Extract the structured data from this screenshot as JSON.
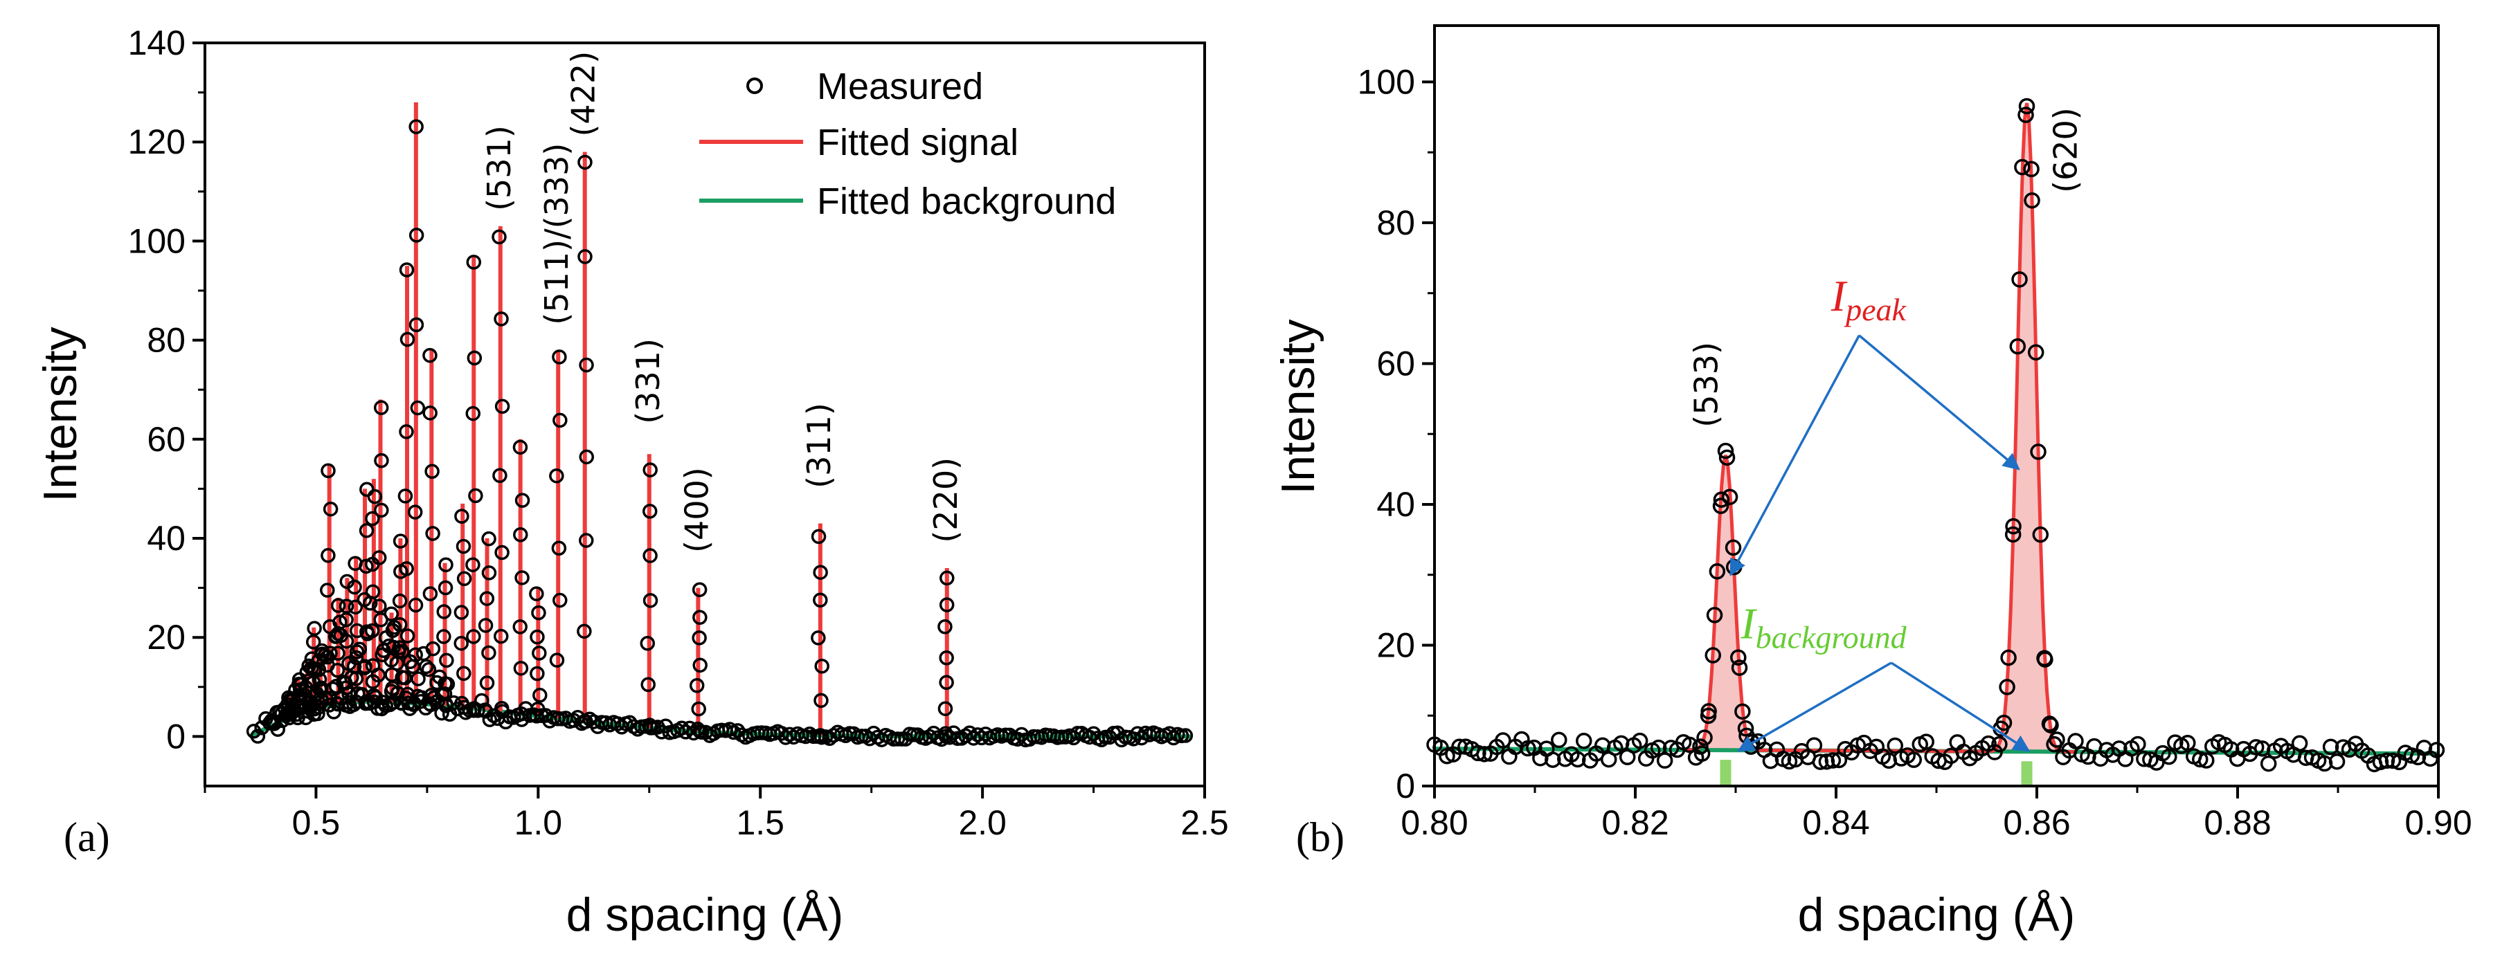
{
  "chart_data": [
    {
      "type": "scatter",
      "panel_label": "(a)",
      "xlabel": "d spacing (Å)",
      "ylabel": "Intensity",
      "xlim": [
        0.25,
        2.5
      ],
      "ylim": [
        -10,
        140
      ],
      "xticks": [
        0.5,
        1.0,
        1.5,
        2.0,
        2.5
      ],
      "xtick_labels": [
        "0.5",
        "1.0",
        "1.5",
        "2.0",
        "2.5"
      ],
      "yticks": [
        0,
        20,
        40,
        60,
        80,
        100,
        120,
        140
      ],
      "ytick_labels": [
        "0",
        "20",
        "40",
        "60",
        "80",
        "100",
        "120",
        "140"
      ],
      "legend": {
        "position": "top-right",
        "entries": [
          {
            "label": "Measured",
            "style": "open-circle",
            "color": "#000000"
          },
          {
            "label": "Fitted signal",
            "style": "line",
            "color": "#ee3b3b"
          },
          {
            "label": "Fitted background",
            "style": "line",
            "color": "#1a9e63"
          }
        ]
      },
      "background": {
        "start": 0.35,
        "end": 2.47,
        "peak_d": 0.6,
        "peak_value": 7
      },
      "peaks": [
        {
          "d": 0.44,
          "h": 8
        },
        {
          "d": 0.46,
          "h": 12
        },
        {
          "d": 0.48,
          "h": 15
        },
        {
          "d": 0.495,
          "h": 22
        },
        {
          "d": 0.51,
          "h": 18
        },
        {
          "d": 0.53,
          "h": 55
        },
        {
          "d": 0.55,
          "h": 28
        },
        {
          "d": 0.57,
          "h": 32
        },
        {
          "d": 0.59,
          "h": 36
        },
        {
          "d": 0.61,
          "h": 50
        },
        {
          "d": 0.63,
          "h": 52
        },
        {
          "d": 0.645,
          "h": 68
        },
        {
          "d": 0.67,
          "h": 25
        },
        {
          "d": 0.69,
          "h": 40
        },
        {
          "d": 0.705,
          "h": 95
        },
        {
          "d": 0.725,
          "h": 128
        },
        {
          "d": 0.76,
          "h": 78
        },
        {
          "d": 0.79,
          "h": 35
        },
        {
          "d": 0.83,
          "h": 47
        },
        {
          "d": 0.855,
          "h": 97
        },
        {
          "d": 0.885,
          "h": 40
        },
        {
          "d": 0.915,
          "h": 103
        },
        {
          "d": 0.96,
          "h": 60
        },
        {
          "d": 1.0,
          "h": 30
        },
        {
          "d": 1.045,
          "h": 78
        },
        {
          "d": 1.105,
          "h": 118
        },
        {
          "d": 1.25,
          "h": 57
        },
        {
          "d": 1.36,
          "h": 30
        },
        {
          "d": 1.635,
          "h": 43
        },
        {
          "d": 1.92,
          "h": 34
        }
      ],
      "annotations": [
        {
          "text": "(531)",
          "d": 0.915,
          "y": 103
        },
        {
          "text": "(511)/(333)",
          "d": 1.045,
          "y": 80
        },
        {
          "text": "(422)",
          "d": 1.105,
          "y": 118
        },
        {
          "text": "(331)",
          "d": 1.25,
          "y": 60
        },
        {
          "text": "(400)",
          "d": 1.36,
          "y": 34
        },
        {
          "text": "(311)",
          "d": 1.635,
          "y": 47
        },
        {
          "text": "(220)",
          "d": 1.92,
          "y": 36
        }
      ]
    },
    {
      "type": "scatter",
      "panel_label": "(b)",
      "xlabel": "d spacing (Å)",
      "ylabel": "Intensity",
      "xlim": [
        0.8,
        0.9
      ],
      "ylim": [
        0,
        108
      ],
      "xticks": [
        0.8,
        0.82,
        0.84,
        0.86,
        0.88,
        0.9
      ],
      "xtick_labels": [
        "0.80",
        "0.82",
        "0.84",
        "0.86",
        "0.88",
        "0.90"
      ],
      "yticks": [
        0,
        20,
        40,
        60,
        80,
        100
      ],
      "ytick_labels": [
        "0",
        "20",
        "40",
        "60",
        "80",
        "100"
      ],
      "background_level": {
        "start": 5.3,
        "end": 4.6
      },
      "peaks": [
        {
          "label": "(533)",
          "d": 0.829,
          "h": 47,
          "width": 0.0012
        },
        {
          "label": "(620)",
          "d": 0.859,
          "h": 97,
          "width": 0.0013
        }
      ],
      "background_markers": [
        {
          "d": 0.829,
          "label": "bg-533"
        },
        {
          "d": 0.859,
          "label": "bg-620"
        }
      ],
      "peak_annotation": {
        "symbol": "I",
        "subscript": "peak",
        "color": "#e02020"
      },
      "background_annotation": {
        "symbol": "I",
        "subscript": "background",
        "color": "#66cc33"
      },
      "colors": {
        "signal": "#ee3b3b",
        "background": "#1a9e63",
        "fill": "#f7c4c4",
        "arrow": "#1f6fc4"
      }
    }
  ]
}
